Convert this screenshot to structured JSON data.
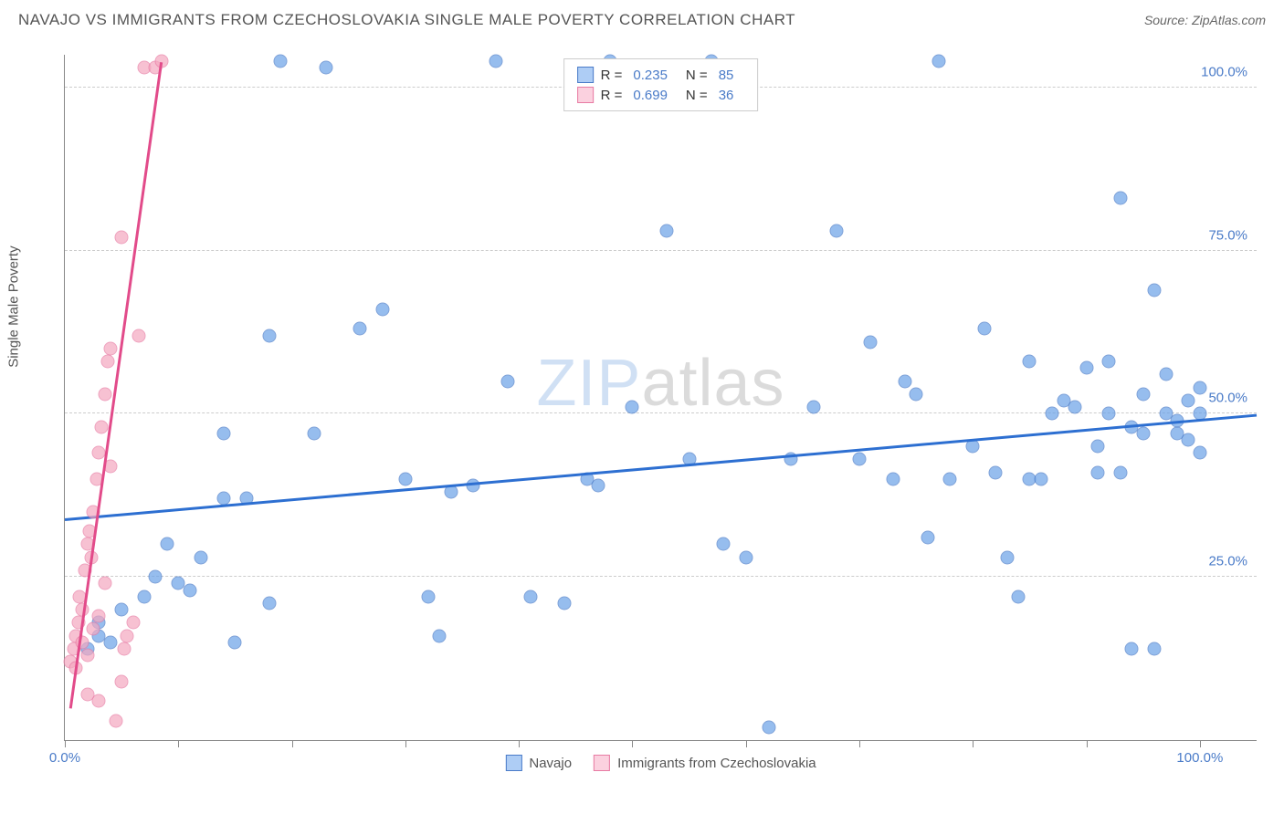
{
  "header": {
    "title": "NAVAJO VS IMMIGRANTS FROM CZECHOSLOVAKIA SINGLE MALE POVERTY CORRELATION CHART",
    "source": "Source: ZipAtlas.com"
  },
  "watermark": {
    "z": "ZIP",
    "rest": "atlas"
  },
  "chart": {
    "type": "scatter",
    "y_label": "Single Male Poverty",
    "xlim": [
      0,
      105
    ],
    "ylim": [
      0,
      105
    ],
    "y_ticks": [
      25,
      50,
      75,
      100
    ],
    "y_tick_labels": [
      "25.0%",
      "50.0%",
      "75.0%",
      "100.0%"
    ],
    "x_ticks": [
      0,
      10,
      20,
      30,
      40,
      50,
      60,
      70,
      80,
      90,
      100
    ],
    "x_tick_labels_shown": {
      "0": "0.0%",
      "100": "100.0%"
    },
    "background_color": "#ffffff",
    "grid_color": "#cccccc",
    "marker_radius": 7.5,
    "marker_fill_opacity": 0.35,
    "series": [
      {
        "name": "Navajo",
        "color": "#6aa2e8",
        "stroke": "#4a7bc8",
        "r": "0.235",
        "n": "85",
        "trend": {
          "x1": 0,
          "y1": 34,
          "x2": 105,
          "y2": 50,
          "color": "#2d6fd1",
          "width": 2.5
        },
        "points": [
          [
            2,
            14
          ],
          [
            3,
            16
          ],
          [
            3,
            18
          ],
          [
            4,
            15
          ],
          [
            5,
            20
          ],
          [
            7,
            22
          ],
          [
            8,
            25
          ],
          [
            9,
            30
          ],
          [
            10,
            24
          ],
          [
            11,
            23
          ],
          [
            12,
            28
          ],
          [
            14,
            47
          ],
          [
            14,
            37
          ],
          [
            15,
            15
          ],
          [
            16,
            37
          ],
          [
            18,
            21
          ],
          [
            18,
            62
          ],
          [
            19,
            104
          ],
          [
            22,
            47
          ],
          [
            23,
            103
          ],
          [
            26,
            63
          ],
          [
            28,
            66
          ],
          [
            30,
            40
          ],
          [
            32,
            22
          ],
          [
            33,
            16
          ],
          [
            34,
            38
          ],
          [
            36,
            39
          ],
          [
            38,
            104
          ],
          [
            39,
            55
          ],
          [
            41,
            22
          ],
          [
            44,
            21
          ],
          [
            46,
            40
          ],
          [
            47,
            39
          ],
          [
            48,
            104
          ],
          [
            50,
            51
          ],
          [
            53,
            78
          ],
          [
            55,
            43
          ],
          [
            57,
            104
          ],
          [
            58,
            30
          ],
          [
            60,
            28
          ],
          [
            62,
            2
          ],
          [
            64,
            43
          ],
          [
            66,
            51
          ],
          [
            68,
            78
          ],
          [
            70,
            43
          ],
          [
            71,
            61
          ],
          [
            73,
            40
          ],
          [
            74,
            55
          ],
          [
            75,
            53
          ],
          [
            76,
            31
          ],
          [
            77,
            104
          ],
          [
            78,
            40
          ],
          [
            80,
            45
          ],
          [
            81,
            63
          ],
          [
            82,
            41
          ],
          [
            83,
            28
          ],
          [
            84,
            22
          ],
          [
            85,
            40
          ],
          [
            85,
            58
          ],
          [
            86,
            40
          ],
          [
            87,
            50
          ],
          [
            88,
            52
          ],
          [
            89,
            51
          ],
          [
            90,
            57
          ],
          [
            91,
            41
          ],
          [
            91,
            45
          ],
          [
            92,
            50
          ],
          [
            92,
            58
          ],
          [
            93,
            83
          ],
          [
            93,
            41
          ],
          [
            94,
            48
          ],
          [
            94,
            14
          ],
          [
            95,
            47
          ],
          [
            95,
            53
          ],
          [
            96,
            69
          ],
          [
            96,
            14
          ],
          [
            97,
            50
          ],
          [
            97,
            56
          ],
          [
            98,
            49
          ],
          [
            98,
            47
          ],
          [
            99,
            46
          ],
          [
            99,
            52
          ],
          [
            100,
            50
          ],
          [
            100,
            44
          ],
          [
            100,
            54
          ]
        ]
      },
      {
        "name": "Immigrants from Czechoslovakia",
        "color": "#f5a8c0",
        "stroke": "#e87ba3",
        "r": "0.699",
        "n": "36",
        "trend": {
          "x1": 0.5,
          "y1": 5,
          "x2": 8.5,
          "y2": 104,
          "color": "#e24b8a",
          "width": 2.5
        },
        "points": [
          [
            0.5,
            12
          ],
          [
            0.8,
            14
          ],
          [
            1,
            16
          ],
          [
            1,
            11
          ],
          [
            1.2,
            18
          ],
          [
            1.3,
            22
          ],
          [
            1.5,
            20
          ],
          [
            1.5,
            15
          ],
          [
            1.8,
            26
          ],
          [
            2,
            30
          ],
          [
            2,
            13
          ],
          [
            2.2,
            32
          ],
          [
            2.3,
            28
          ],
          [
            2.5,
            35
          ],
          [
            2.5,
            17
          ],
          [
            2.8,
            40
          ],
          [
            3,
            44
          ],
          [
            3,
            19
          ],
          [
            3.2,
            48
          ],
          [
            3.5,
            53
          ],
          [
            3.5,
            24
          ],
          [
            3.8,
            58
          ],
          [
            4,
            42
          ],
          [
            4,
            60
          ],
          [
            4.5,
            3
          ],
          [
            5,
            9
          ],
          [
            5,
            77
          ],
          [
            5.2,
            14
          ],
          [
            5.5,
            16
          ],
          [
            6,
            18
          ],
          [
            6.5,
            62
          ],
          [
            7,
            103
          ],
          [
            8,
            103
          ],
          [
            8.5,
            104
          ],
          [
            3,
            6
          ],
          [
            2,
            7
          ]
        ]
      }
    ],
    "legend_bottom": [
      {
        "label": "Navajo",
        "fill": "#aecdf5",
        "stroke": "#4a7bc8"
      },
      {
        "label": "Immigrants from Czechoslovakia",
        "fill": "#fbd1df",
        "stroke": "#e87ba3"
      }
    ],
    "legend_top_swatches": [
      {
        "fill": "#aecdf5",
        "stroke": "#4a7bc8"
      },
      {
        "fill": "#fbd1df",
        "stroke": "#e87ba3"
      }
    ]
  }
}
